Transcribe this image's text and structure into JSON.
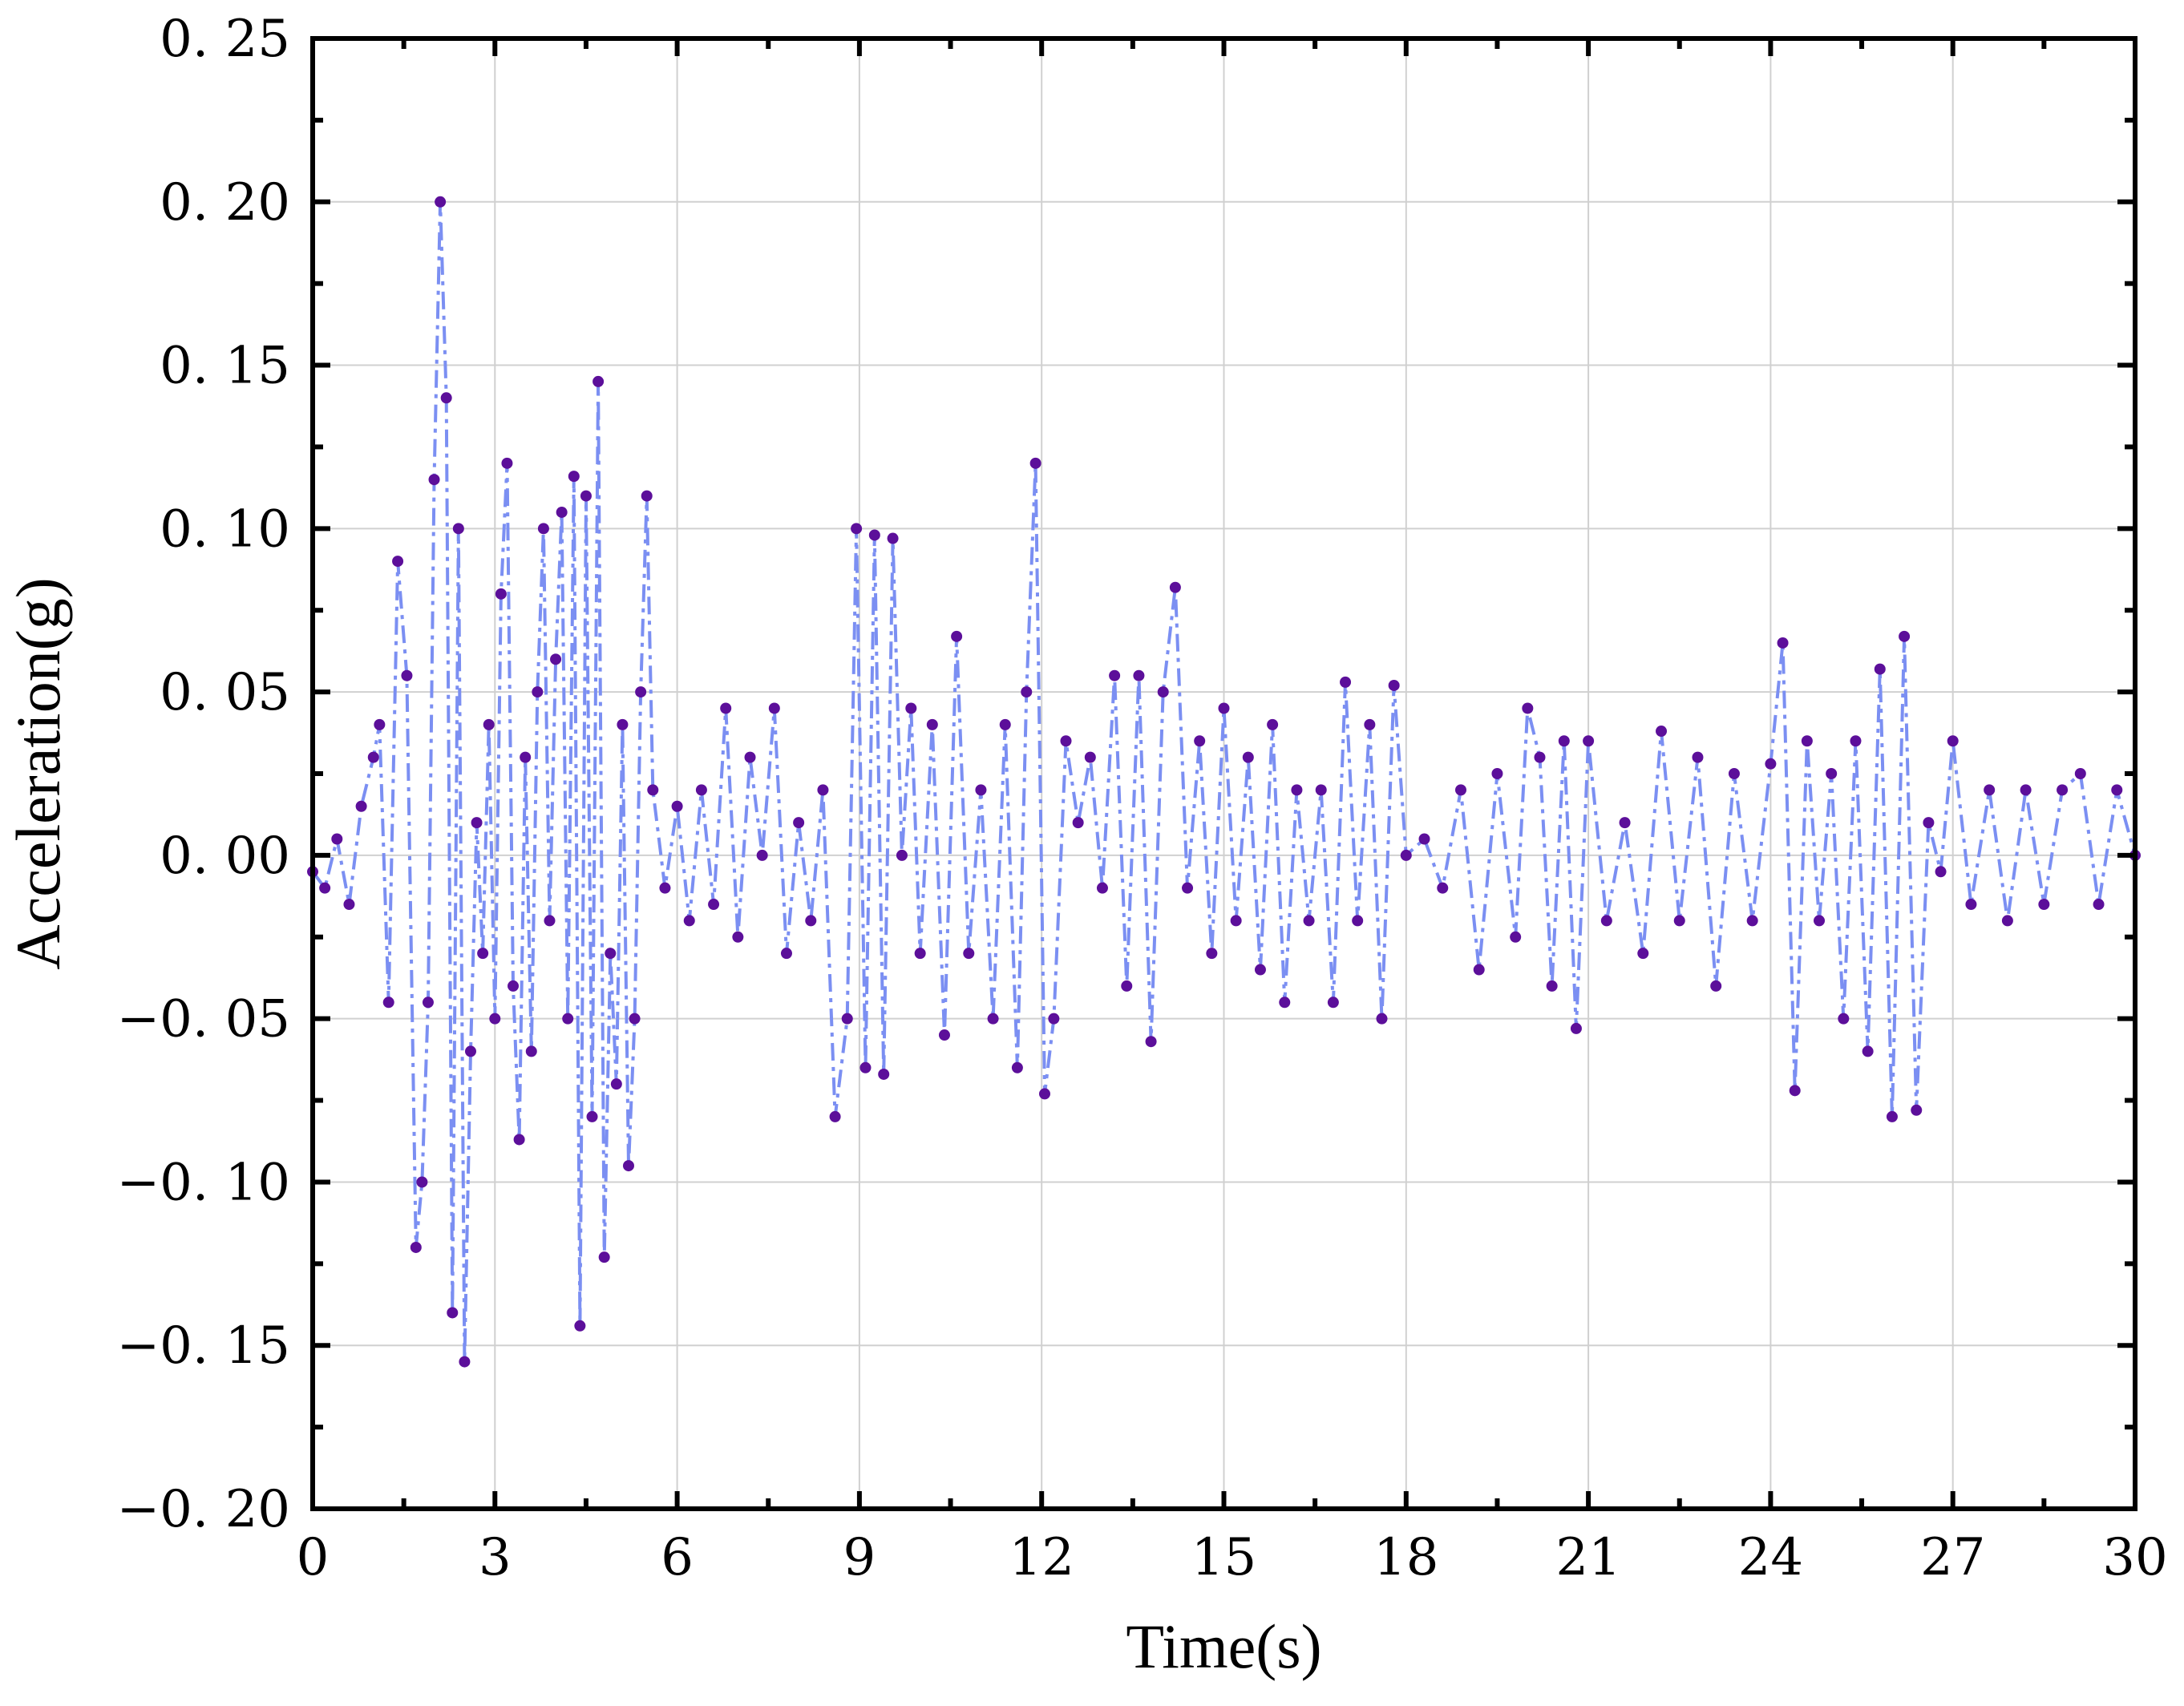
{
  "colors": {
    "line": "#7B8FF2",
    "marker": "#5C0F9A",
    "grid": "#d0d0d0",
    "axis": "#000000"
  },
  "chart_data": {
    "type": "line",
    "title": "",
    "xlabel": "Time(s)",
    "ylabel": "Acceleration(g)",
    "xlim": [
      0,
      30
    ],
    "ylim": [
      -0.2,
      0.25
    ],
    "grid": true,
    "line_style": "dash-dot",
    "marker": "circle",
    "xticks": [
      0,
      3,
      6,
      9,
      12,
      15,
      18,
      21,
      24,
      27,
      30
    ],
    "xtick_labels": [
      "0",
      "3",
      "6",
      "9",
      "12",
      "15",
      "18",
      "21",
      "24",
      "27",
      "30"
    ],
    "yticks": [
      -0.2,
      -0.15,
      -0.1,
      -0.05,
      0.0,
      0.05,
      0.1,
      0.15,
      0.2,
      0.25
    ],
    "ytick_labels": [
      "−0. 20",
      "−0. 15",
      "−0. 10",
      "−0. 05",
      "0. 00",
      "0. 05",
      "0. 10",
      "0. 15",
      "0. 20",
      "0. 25"
    ],
    "series": [
      {
        "name": "Acceleration",
        "x": [
          0.0,
          0.2,
          0.4,
          0.6,
          0.8,
          1.0,
          1.1,
          1.25,
          1.4,
          1.55,
          1.7,
          1.8,
          1.9,
          2.0,
          2.1,
          2.2,
          2.3,
          2.4,
          2.5,
          2.6,
          2.7,
          2.8,
          2.9,
          3.0,
          3.1,
          3.2,
          3.3,
          3.4,
          3.5,
          3.6,
          3.7,
          3.8,
          3.9,
          4.0,
          4.1,
          4.2,
          4.3,
          4.4,
          4.5,
          4.6,
          4.7,
          4.8,
          4.9,
          5.0,
          5.1,
          5.2,
          5.3,
          5.4,
          5.5,
          5.6,
          5.8,
          6.0,
          6.2,
          6.4,
          6.6,
          6.8,
          7.0,
          7.2,
          7.4,
          7.6,
          7.8,
          8.0,
          8.2,
          8.4,
          8.6,
          8.8,
          8.95,
          9.1,
          9.25,
          9.4,
          9.55,
          9.7,
          9.85,
          10.0,
          10.2,
          10.4,
          10.6,
          10.8,
          11.0,
          11.2,
          11.4,
          11.6,
          11.75,
          11.9,
          12.05,
          12.2,
          12.4,
          12.6,
          12.8,
          13.0,
          13.2,
          13.4,
          13.6,
          13.8,
          14.0,
          14.2,
          14.4,
          14.6,
          14.8,
          15.0,
          15.2,
          15.4,
          15.6,
          15.8,
          16.0,
          16.2,
          16.4,
          16.6,
          16.8,
          17.0,
          17.2,
          17.4,
          17.6,
          17.8,
          18.0,
          18.3,
          18.6,
          18.9,
          19.2,
          19.5,
          19.8,
          20.0,
          20.2,
          20.4,
          20.6,
          20.8,
          21.0,
          21.3,
          21.6,
          21.9,
          22.2,
          22.5,
          22.8,
          23.1,
          23.4,
          23.7,
          24.0,
          24.2,
          24.4,
          24.6,
          24.8,
          25.0,
          25.2,
          25.4,
          25.6,
          25.8,
          26.0,
          26.2,
          26.4,
          26.6,
          26.8,
          27.0,
          27.3,
          27.6,
          27.9,
          28.2,
          28.5,
          28.8,
          29.1,
          29.4,
          29.7,
          30.0
        ],
        "y": [
          -0.005,
          -0.01,
          0.005,
          -0.015,
          0.015,
          0.03,
          0.04,
          -0.045,
          0.09,
          0.055,
          -0.12,
          -0.1,
          -0.045,
          0.115,
          0.2,
          0.14,
          -0.14,
          0.1,
          -0.155,
          -0.06,
          0.01,
          -0.03,
          0.04,
          -0.05,
          0.08,
          0.12,
          -0.04,
          -0.087,
          0.03,
          -0.06,
          0.05,
          0.1,
          -0.02,
          0.06,
          0.105,
          -0.05,
          0.116,
          -0.144,
          0.11,
          -0.08,
          0.145,
          -0.123,
          -0.03,
          -0.07,
          0.04,
          -0.095,
          -0.05,
          0.05,
          0.11,
          0.02,
          -0.01,
          0.015,
          -0.02,
          0.02,
          -0.015,
          0.045,
          -0.025,
          0.03,
          0.0,
          0.045,
          -0.03,
          0.01,
          -0.02,
          0.02,
          -0.08,
          -0.05,
          0.1,
          -0.065,
          0.098,
          -0.067,
          0.097,
          0.0,
          0.045,
          -0.03,
          0.04,
          -0.055,
          0.067,
          -0.03,
          0.02,
          -0.05,
          0.04,
          -0.065,
          0.05,
          0.12,
          -0.073,
          -0.05,
          0.035,
          0.01,
          0.03,
          -0.01,
          0.055,
          -0.04,
          0.055,
          -0.057,
          0.05,
          0.082,
          -0.01,
          0.035,
          -0.03,
          0.045,
          -0.02,
          0.03,
          -0.035,
          0.04,
          -0.045,
          0.02,
          -0.02,
          0.02,
          -0.045,
          0.053,
          -0.02,
          0.04,
          -0.05,
          0.052,
          0.0,
          0.005,
          -0.01,
          0.02,
          -0.035,
          0.025,
          -0.025,
          0.045,
          0.03,
          -0.04,
          0.035,
          -0.053,
          0.035,
          -0.02,
          0.01,
          -0.03,
          0.038,
          -0.02,
          0.03,
          -0.04,
          0.025,
          -0.02,
          0.028,
          0.065,
          -0.072,
          0.035,
          -0.02,
          0.025,
          -0.05,
          0.035,
          -0.06,
          0.057,
          -0.08,
          0.067,
          -0.078,
          0.01,
          -0.005,
          0.035,
          -0.015,
          0.02,
          -0.02,
          0.02,
          -0.015,
          0.02,
          0.025,
          -0.015,
          0.02,
          0.0
        ]
      }
    ]
  }
}
